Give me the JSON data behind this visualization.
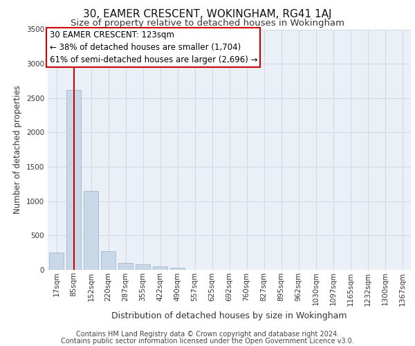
{
  "title": "30, EAMER CRESCENT, WOKINGHAM, RG41 1AJ",
  "subtitle": "Size of property relative to detached houses in Wokingham",
  "xlabel": "Distribution of detached houses by size in Wokingham",
  "ylabel": "Number of detached properties",
  "categories": [
    "17sqm",
    "85sqm",
    "152sqm",
    "220sqm",
    "287sqm",
    "355sqm",
    "422sqm",
    "490sqm",
    "557sqm",
    "625sqm",
    "692sqm",
    "760sqm",
    "827sqm",
    "895sqm",
    "962sqm",
    "1030sqm",
    "1097sqm",
    "1165sqm",
    "1232sqm",
    "1300sqm",
    "1367sqm"
  ],
  "values": [
    250,
    2620,
    1150,
    275,
    100,
    78,
    48,
    28,
    0,
    0,
    0,
    0,
    0,
    0,
    0,
    0,
    0,
    0,
    0,
    0,
    0
  ],
  "bar_color": "#c8d8e8",
  "bar_edge_color": "#a0b8cc",
  "grid_color": "#d0d8e0",
  "bg_color": "#eaf0f6",
  "vline_color": "#cc0000",
  "vline_x": 1.0,
  "annotation_text": "30 EAMER CRESCENT: 123sqm\n← 38% of detached houses are smaller (1,704)\n61% of semi-detached houses are larger (2,696) →",
  "annotation_box_color": "#cc0000",
  "ylim": [
    0,
    3500
  ],
  "yticks": [
    0,
    500,
    1000,
    1500,
    2000,
    2500,
    3000,
    3500
  ],
  "footnote1": "Contains HM Land Registry data © Crown copyright and database right 2024.",
  "footnote2": "Contains public sector information licensed under the Open Government Licence v3.0.",
  "title_fontsize": 11,
  "subtitle_fontsize": 9.5,
  "xlabel_fontsize": 9,
  "ylabel_fontsize": 8.5,
  "tick_fontsize": 7.5,
  "annotation_fontsize": 8.5,
  "footnote_fontsize": 7
}
